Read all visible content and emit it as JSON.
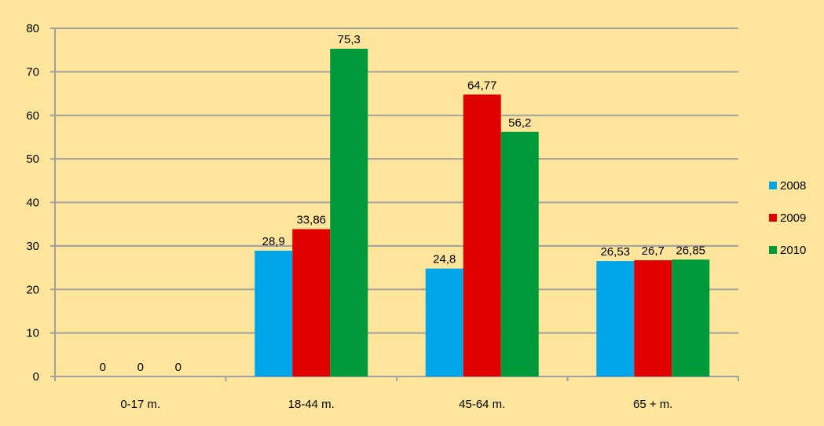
{
  "chart_data": {
    "type": "bar",
    "title": "",
    "xlabel": "",
    "ylabel": "",
    "categories": [
      "0-17 m.",
      "18-44 m.",
      "45-64 m.",
      "65 + m."
    ],
    "series": [
      {
        "name": "2008",
        "color": "#00a6e8",
        "values": [
          0,
          28.9,
          24.8,
          26.53
        ],
        "labels": [
          "0",
          "28,9",
          "24,8",
          "26,53"
        ]
      },
      {
        "name": "2009",
        "color": "#e00000",
        "values": [
          0,
          33.86,
          64.77,
          26.7
        ],
        "labels": [
          "0",
          "33,86",
          "64,77",
          "26,7"
        ]
      },
      {
        "name": "2010",
        "color": "#009a3a",
        "values": [
          0,
          75.3,
          56.2,
          26.85
        ],
        "labels": [
          "0",
          "75,3",
          "56,2",
          "26,85"
        ]
      }
    ],
    "ylim": [
      0,
      80
    ],
    "yticks": [
      0,
      10,
      20,
      30,
      40,
      50,
      60,
      70,
      80
    ],
    "grid": true,
    "legend": "right",
    "background_color": "#fde59b",
    "grid_color": "#a0a0a0"
  }
}
